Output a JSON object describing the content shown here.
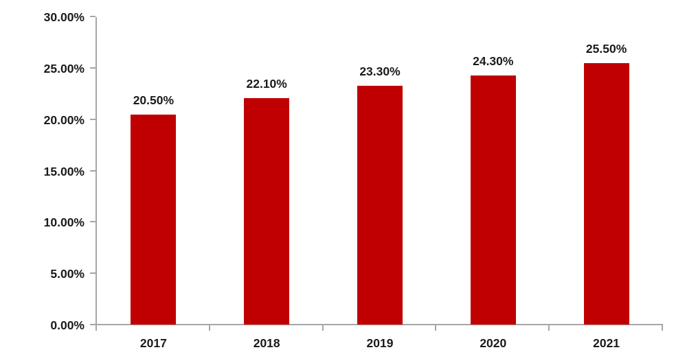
{
  "chart_data": {
    "type": "bar",
    "categories": [
      "2017",
      "2018",
      "2019",
      "2020",
      "2021"
    ],
    "values": [
      20.5,
      22.1,
      23.3,
      24.3,
      25.5
    ],
    "data_labels": [
      "20.50%",
      "22.10%",
      "23.30%",
      "24.30%",
      "25.50%"
    ],
    "title": "",
    "xlabel": "",
    "ylabel": "",
    "ylim": [
      0,
      30
    ],
    "y_tick_values": [
      0,
      5,
      10,
      15,
      20,
      25,
      30
    ],
    "y_tick_labels": [
      "0.00%",
      "5.00%",
      "10.00%",
      "15.00%",
      "20.00%",
      "25.00%",
      "30.00%"
    ],
    "grid": false,
    "legend_position": "none",
    "colors": {
      "bar": "#c00000",
      "axis": "#a6a6a6",
      "text": "#1a1a1a",
      "background": "#ffffff"
    }
  }
}
